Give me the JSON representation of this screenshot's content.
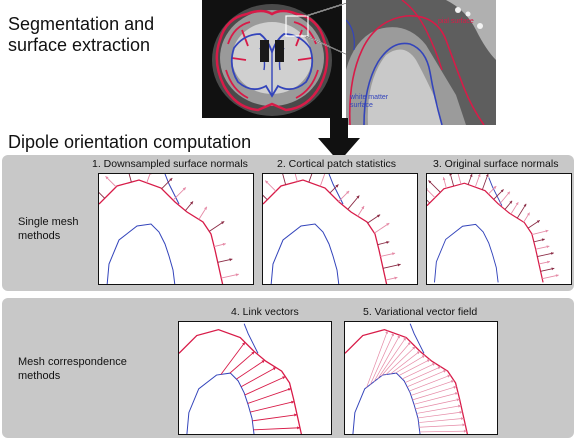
{
  "sections": {
    "segmentation_title_line1": "Segmentation and",
    "segmentation_title_line2": "surface extraction",
    "dipole_title": "Dipole orientation computation"
  },
  "mri_zoom": {
    "pial_label": "pial surface",
    "wm_label_line1": "white matter",
    "wm_label_line2": "surface"
  },
  "single_mesh": {
    "group_label_line1": "Single mesh",
    "group_label_line2": "methods",
    "panels": [
      {
        "label": "1. Downsampled surface normals"
      },
      {
        "label": "2. Cortical patch statistics"
      },
      {
        "label": "3. Original surface normals"
      }
    ]
  },
  "mesh_correspondence": {
    "group_label_line1": "Mesh correspondence",
    "group_label_line2": "methods",
    "panels": [
      {
        "label": "4. Link vectors"
      },
      {
        "label": "5. Variational vector field"
      }
    ]
  },
  "colors": {
    "pial": "#d81b48",
    "white_matter": "#3344bb",
    "normals_dark": "#8a2a44",
    "normals_light": "#e58aa6",
    "band": "#c8c8c8"
  }
}
